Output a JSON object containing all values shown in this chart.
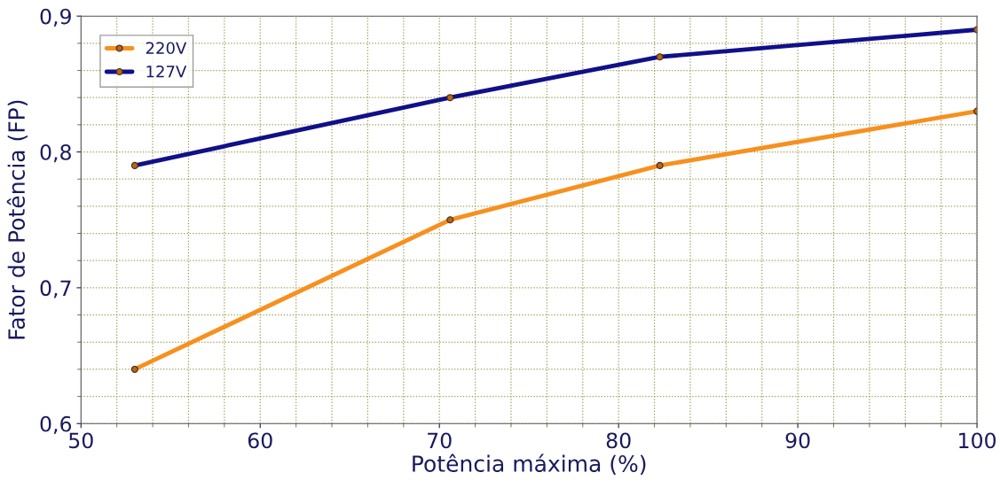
{
  "chart_data": {
    "type": "line",
    "xlabel": "Potência máxima (%)",
    "ylabel": "Fator de Potência (FP)",
    "series": [
      {
        "name": "220V",
        "color": "#f7901e",
        "x": [
          53,
          70.6,
          82.3,
          100
        ],
        "values": [
          0.64,
          0.75,
          0.79,
          0.83
        ]
      },
      {
        "name": "127V",
        "color": "#10108a",
        "x": [
          53,
          70.6,
          82.3,
          100
        ],
        "values": [
          0.79,
          0.84,
          0.87,
          0.89
        ]
      }
    ],
    "xlim": [
      50,
      100
    ],
    "xticks": [
      50,
      60,
      70,
      80,
      90,
      100
    ],
    "ylim": [
      0.6,
      0.9
    ],
    "yticks": [
      {
        "value": 0.6,
        "label": "0,6"
      },
      {
        "value": 0.7,
        "label": "0,7"
      },
      {
        "value": 0.8,
        "label": "0,8"
      },
      {
        "value": 0.9,
        "label": "0,9"
      }
    ],
    "grid": true,
    "legend": "top left",
    "marker": "circle",
    "line_style": "solid"
  }
}
